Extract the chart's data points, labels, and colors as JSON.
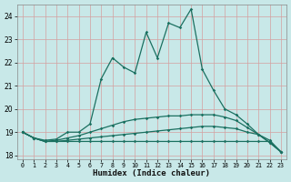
{
  "xlabel": "Humidex (Indice chaleur)",
  "background_color": "#c8e8e8",
  "grid_color": "#d4a0a0",
  "line_color": "#1a7060",
  "xlim_min": -0.5,
  "xlim_max": 23.5,
  "ylim_min": 17.85,
  "ylim_max": 24.5,
  "yticks": [
    18,
    19,
    20,
    21,
    22,
    23,
    24
  ],
  "xticks": [
    0,
    1,
    2,
    3,
    4,
    5,
    6,
    7,
    8,
    9,
    10,
    11,
    12,
    13,
    14,
    15,
    16,
    17,
    18,
    19,
    20,
    21,
    22,
    23
  ],
  "series": [
    [
      19.0,
      18.75,
      18.6,
      18.6,
      18.6,
      18.6,
      18.6,
      18.6,
      18.6,
      18.6,
      18.6,
      18.6,
      18.6,
      18.6,
      18.6,
      18.6,
      18.6,
      18.6,
      18.6,
      18.6,
      18.6,
      18.6,
      18.6,
      18.15
    ],
    [
      19.0,
      18.75,
      18.6,
      18.6,
      18.65,
      18.7,
      18.75,
      18.8,
      18.85,
      18.9,
      18.95,
      19.0,
      19.05,
      19.1,
      19.15,
      19.2,
      19.25,
      19.25,
      19.2,
      19.15,
      19.0,
      18.9,
      18.65,
      18.15
    ],
    [
      19.0,
      18.75,
      18.6,
      18.65,
      18.75,
      18.85,
      19.0,
      19.15,
      19.3,
      19.45,
      19.55,
      19.6,
      19.65,
      19.7,
      19.7,
      19.75,
      19.75,
      19.75,
      19.65,
      19.5,
      19.2,
      18.9,
      18.55,
      18.15
    ],
    [
      19.0,
      18.75,
      18.65,
      18.7,
      19.0,
      19.0,
      19.35,
      21.3,
      22.2,
      21.8,
      21.55,
      23.3,
      22.2,
      23.7,
      23.5,
      24.3,
      21.7,
      20.8,
      20.0,
      19.75,
      19.35,
      18.9,
      18.55,
      18.15
    ]
  ]
}
